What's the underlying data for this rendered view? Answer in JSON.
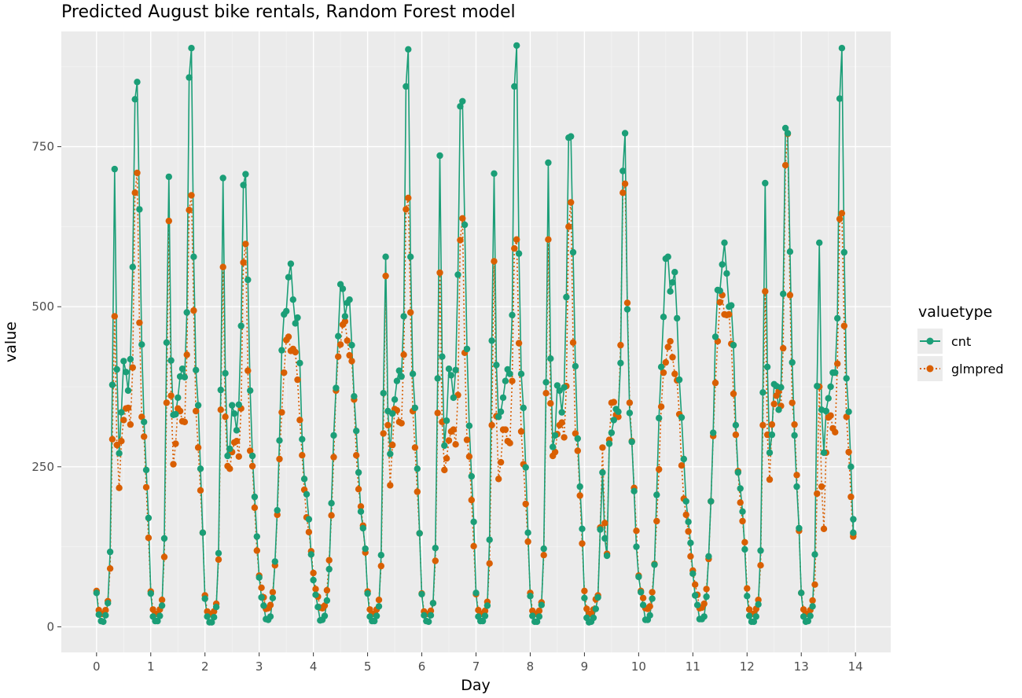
{
  "chart_data": {
    "type": "line",
    "title": "Predicted August bike rentals, Random Forest model",
    "xlabel": "Day",
    "ylabel": "value",
    "xlim": [
      -0.65,
      14.65
    ],
    "ylim": [
      -40,
      930
    ],
    "xticks": [
      "0",
      "1",
      "2",
      "3",
      "4",
      "5",
      "6",
      "7",
      "8",
      "9",
      "10",
      "11",
      "12",
      "13",
      "14"
    ],
    "yticks": [
      "0",
      "250",
      "500",
      "750"
    ],
    "grid": true,
    "legend": {
      "title": "valuetype",
      "placement": "right"
    },
    "peaks": [
      {
        "x": 0.333,
        "cnt": 680,
        "pred": 498
      },
      {
        "x": 0.75,
        "cnt": 890,
        "pred": 694
      },
      {
        "x": 1.333,
        "cnt": 740,
        "pred": 618
      },
      {
        "x": 1.71,
        "cnt": 865,
        "pred": 690
      },
      {
        "x": 2.333,
        "cnt": 668,
        "pred": 576
      },
      {
        "x": 2.71,
        "cnt": 742,
        "pred": 584
      },
      {
        "x": 3.5,
        "cnt": 546,
        "pred": 412
      },
      {
        "x": 3.8,
        "cnt": 490,
        "pred": 470
      },
      {
        "x": 4.55,
        "cnt": 526,
        "pred": 414
      },
      {
        "x": 4.75,
        "cnt": 470,
        "pred": 492
      },
      {
        "x": 5.333,
        "cnt": 605,
        "pred": 536
      },
      {
        "x": 5.75,
        "cnt": 858,
        "pred": 688
      },
      {
        "x": 6.333,
        "cnt": 706,
        "pred": 565
      },
      {
        "x": 6.75,
        "cnt": 866,
        "pred": 622
      },
      {
        "x": 7.333,
        "cnt": 738,
        "pred": 560
      },
      {
        "x": 7.75,
        "cnt": 862,
        "pred": 622
      },
      {
        "x": 8.333,
        "cnt": 698,
        "pred": 617
      },
      {
        "x": 8.75,
        "cnt": 810,
        "pred": 645
      },
      {
        "x": 9.333,
        "cnt": 250,
        "pred": 275
      },
      {
        "x": 9.71,
        "cnt": 730,
        "pred": 712
      },
      {
        "x": 10.55,
        "cnt": 568,
        "pred": 438
      },
      {
        "x": 10.7,
        "cnt": 550,
        "pred": 458
      },
      {
        "x": 11.45,
        "cnt": 505,
        "pred": 405
      },
      {
        "x": 11.65,
        "cnt": 578,
        "pred": 536
      },
      {
        "x": 12.333,
        "cnt": 672,
        "pred": 532
      },
      {
        "x": 12.71,
        "cnt": 818,
        "pred": 748
      },
      {
        "x": 13.333,
        "cnt": 618,
        "pred": 370
      },
      {
        "x": 13.75,
        "cnt": 854,
        "pred": 665
      }
    ],
    "series": [
      {
        "name": "cnt",
        "color": "#1b9e77",
        "line": "solid"
      },
      {
        "name": "glmpred",
        "color": "#d95f02",
        "line": "dotted"
      }
    ]
  }
}
